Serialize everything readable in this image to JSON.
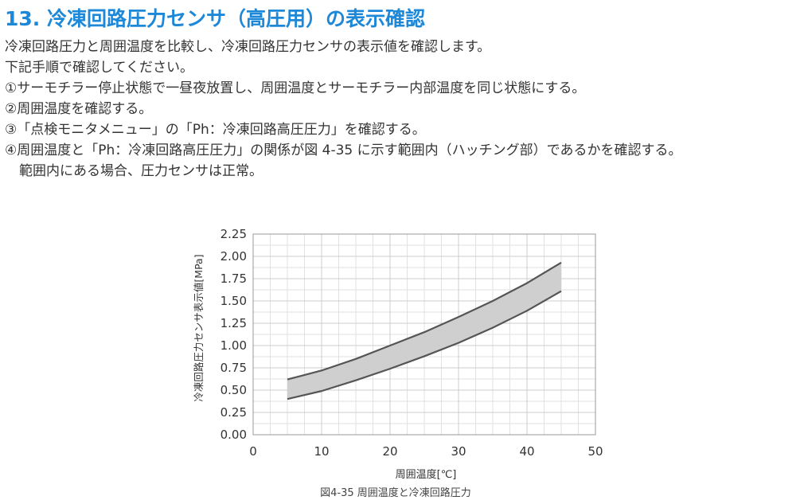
{
  "title": "13. 冷凍回路圧力センサ（高圧用）の表示確認",
  "paragraphs": [
    "冷凍回路圧力と周囲温度を比較し、冷凍回路圧力センサの表示値を確認します。",
    "下記手順で確認してください。",
    "①サーモチラー停止状態で一昼夜放置し、周囲温度とサーモチラー内部温度を同じ状態にする。",
    "②周囲温度を確認する。",
    "③「点検モニタメニュー」の「Ph：冷凍回路高圧圧力」を確認する。",
    "④周囲温度と「Ph：冷凍回路高圧圧力」の関係が図 4-35 に示す範囲内（ハッチング部）であるかを確認する。",
    "範囲内にある場合、圧力センサは正常。"
  ],
  "caption": "図4-35 周囲温度と冷凍回路圧力",
  "chart_data": {
    "type": "area",
    "xlabel": "周囲温度[℃]",
    "ylabel": "冷凍回路圧力センサ表示値[MPa]",
    "xlim": [
      0,
      50
    ],
    "ylim": [
      0,
      2.25
    ],
    "xticks": [
      "0",
      "10",
      "20",
      "30",
      "40",
      "50"
    ],
    "yticks": [
      "0.00",
      "0.25",
      "0.50",
      "0.75",
      "1.00",
      "1.25",
      "1.50",
      "1.75",
      "2.00",
      "2.25"
    ],
    "grid": true,
    "series": [
      {
        "x": [
          5,
          10,
          15,
          20,
          25,
          30,
          35,
          40,
          45
        ],
        "values": [
          0.62,
          0.72,
          0.85,
          1.0,
          1.15,
          1.32,
          1.5,
          1.7,
          1.93
        ]
      },
      {
        "x": [
          5,
          10,
          15,
          20,
          25,
          30,
          35,
          40,
          45
        ],
        "values": [
          0.4,
          0.49,
          0.61,
          0.74,
          0.88,
          1.03,
          1.2,
          1.39,
          1.61
        ]
      }
    ],
    "colors": {
      "fill": "#cccccc",
      "line": "#555555",
      "grid": "#cccccc"
    }
  }
}
